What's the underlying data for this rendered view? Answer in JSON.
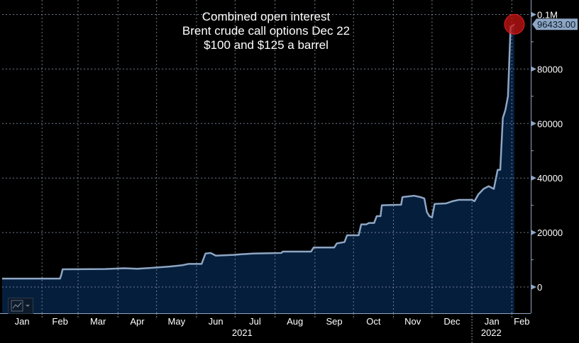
{
  "chart_data": {
    "type": "area",
    "title": [
      "Combined open interest",
      "Brent crude call options Dec 22",
      "$100 and $125 a barrel"
    ],
    "xlabel": "",
    "ylabel": "",
    "x_unit": "days since 2021-01-01",
    "ylim": [
      -10000,
      100000
    ],
    "y_ticks": [
      {
        "v": 0,
        "label": "0"
      },
      {
        "v": 20000,
        "label": "20000"
      },
      {
        "v": 40000,
        "label": "40000"
      },
      {
        "v": 60000,
        "label": "60000"
      },
      {
        "v": 80000,
        "label": "80000"
      },
      {
        "v": 100000,
        "label": "0.1M"
      }
    ],
    "x_ticks": [
      {
        "d": 0,
        "label": "Jan"
      },
      {
        "d": 31,
        "label": "Feb"
      },
      {
        "d": 59,
        "label": "Mar"
      },
      {
        "d": 90,
        "label": "Apr"
      },
      {
        "d": 120,
        "label": "May"
      },
      {
        "d": 151,
        "label": "Jun"
      },
      {
        "d": 181,
        "label": "Jul"
      },
      {
        "d": 212,
        "label": "Aug"
      },
      {
        "d": 243,
        "label": "Sep"
      },
      {
        "d": 273,
        "label": "Oct"
      },
      {
        "d": 304,
        "label": "Nov"
      },
      {
        "d": 334,
        "label": "Dec"
      },
      {
        "d": 365,
        "label": "Jan"
      },
      {
        "d": 396,
        "label": "Feb"
      }
    ],
    "year_labels": [
      {
        "d": 181,
        "label": "2021"
      },
      {
        "d": 380,
        "label": "2022"
      }
    ],
    "last_value_label": "96433.00",
    "points": [
      [
        0,
        3100
      ],
      [
        45,
        3100
      ],
      [
        46,
        4500
      ],
      [
        47,
        6500
      ],
      [
        80,
        6600
      ],
      [
        95,
        6900
      ],
      [
        105,
        6700
      ],
      [
        115,
        7000
      ],
      [
        130,
        7500
      ],
      [
        140,
        8000
      ],
      [
        145,
        8500
      ],
      [
        155,
        8500
      ],
      [
        158,
        12300
      ],
      [
        162,
        12500
      ],
      [
        166,
        11500
      ],
      [
        180,
        11800
      ],
      [
        185,
        12000
      ],
      [
        195,
        12300
      ],
      [
        217,
        12500
      ],
      [
        218,
        13000
      ],
      [
        240,
        13000
      ],
      [
        242,
        14500
      ],
      [
        258,
        14500
      ],
      [
        260,
        16000
      ],
      [
        266,
        16500
      ],
      [
        268,
        19000
      ],
      [
        277,
        19000
      ],
      [
        279,
        23000
      ],
      [
        283,
        23000
      ],
      [
        285,
        23500
      ],
      [
        289,
        23500
      ],
      [
        291,
        26000
      ],
      [
        294,
        26000
      ],
      [
        295,
        30000
      ],
      [
        310,
        30200
      ],
      [
        311,
        33000
      ],
      [
        320,
        33500
      ],
      [
        325,
        33000
      ],
      [
        328,
        32500
      ],
      [
        330,
        27500
      ],
      [
        332,
        26000
      ],
      [
        334,
        25500
      ],
      [
        336,
        30500
      ],
      [
        345,
        30700
      ],
      [
        350,
        31500
      ],
      [
        355,
        32000
      ],
      [
        365,
        32000
      ],
      [
        367,
        31500
      ],
      [
        370,
        34000
      ],
      [
        374,
        36000
      ],
      [
        378,
        37000
      ],
      [
        382,
        36000
      ],
      [
        385,
        43000
      ],
      [
        387,
        43000
      ],
      [
        389,
        62000
      ],
      [
        391,
        65000
      ],
      [
        393,
        70000
      ],
      [
        395,
        95500
      ],
      [
        397,
        96000
      ],
      [
        398,
        96433
      ]
    ]
  },
  "colors": {
    "line": "#8ea6c4",
    "fill": "#051e3c",
    "grid": "#8a97a8",
    "marker": "#c81414"
  }
}
